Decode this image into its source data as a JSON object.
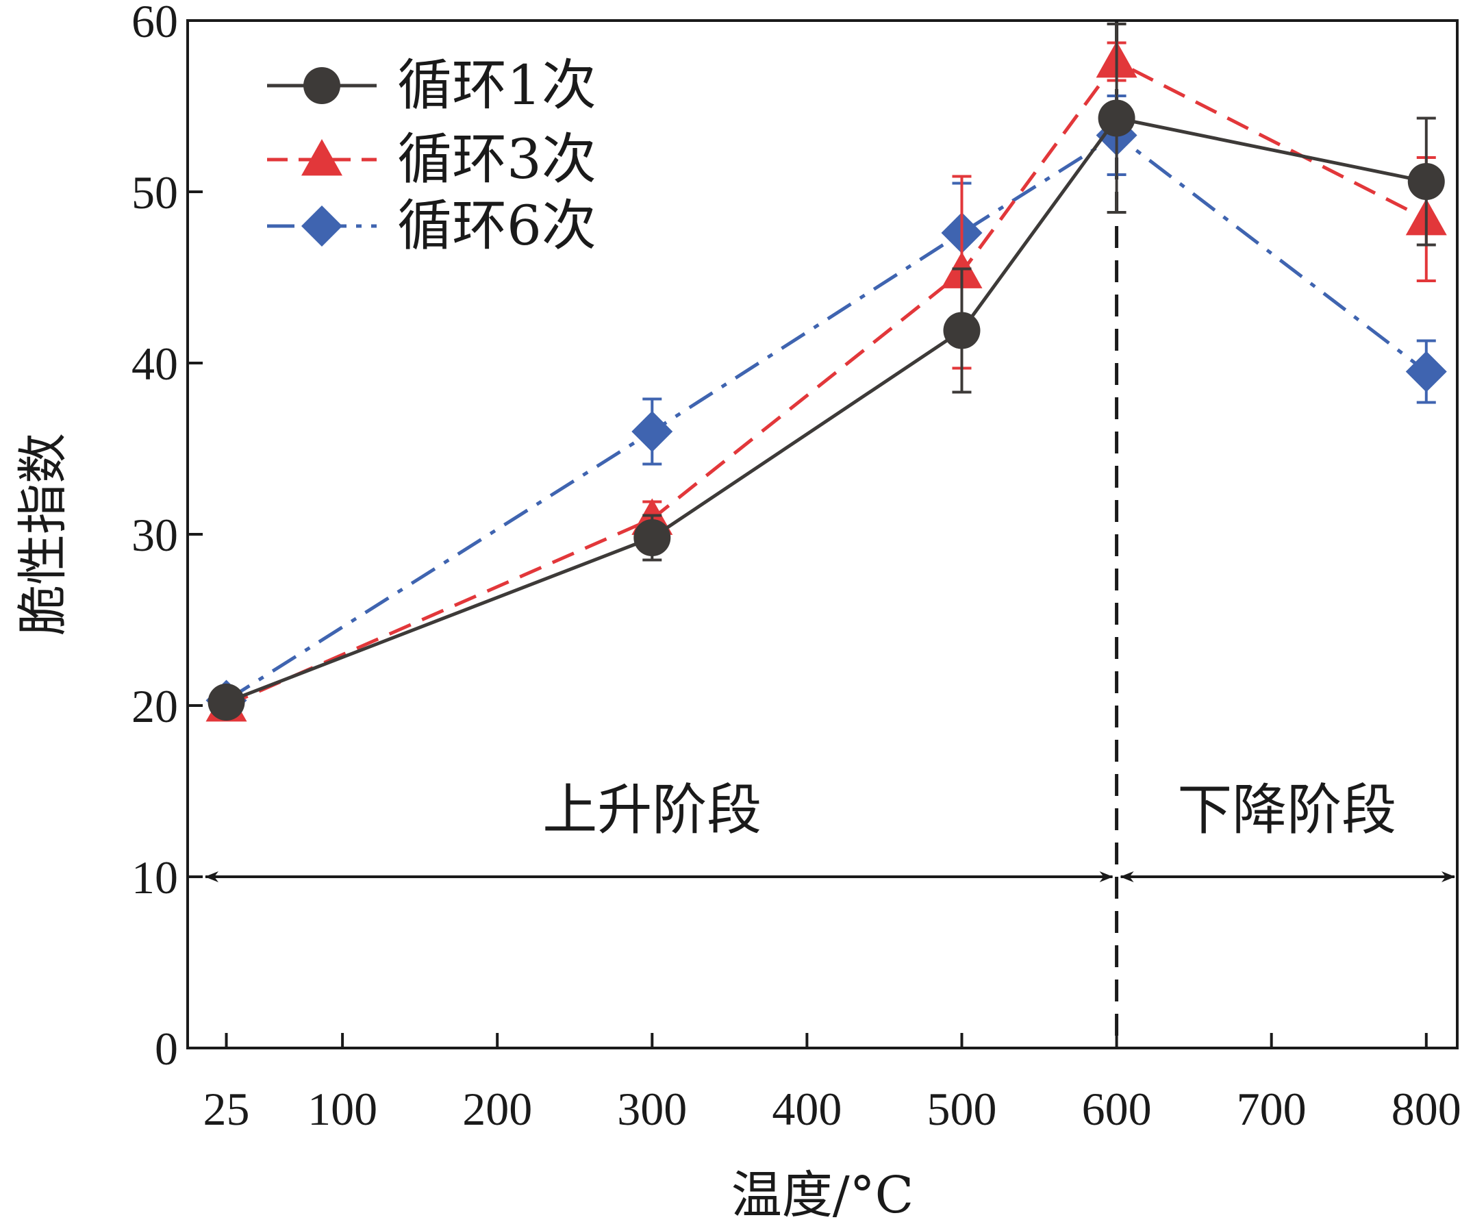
{
  "chart_data": {
    "type": "line",
    "title": "",
    "xlabel": "温度/°C",
    "ylabel": "脆性指数",
    "xlim": [
      0,
      820
    ],
    "ylim": [
      0,
      60
    ],
    "xticks": [
      25,
      100,
      200,
      300,
      400,
      500,
      600,
      700,
      800
    ],
    "xtick_labels": [
      "25",
      "100",
      "200",
      "300",
      "400",
      "500",
      "600",
      "700",
      "800"
    ],
    "yticks": [
      0,
      10,
      20,
      30,
      40,
      50,
      60
    ],
    "ytick_labels": [
      "0",
      "10",
      "20",
      "30",
      "40",
      "50",
      "60"
    ],
    "grid": false,
    "legend_position": "top-left",
    "series": [
      {
        "name": "循环1次",
        "color": "#3d3a38",
        "marker": "circle",
        "line_style": "solid",
        "x": [
          25,
          300,
          500,
          600,
          800
        ],
        "values": [
          20.2,
          29.8,
          41.9,
          54.3,
          50.6
        ],
        "error": [
          0.6,
          1.3,
          3.6,
          5.5,
          3.7
        ]
      },
      {
        "name": "循环3次",
        "color": "#e2373a",
        "marker": "triangle",
        "line_style": "dashed",
        "x": [
          25,
          300,
          500,
          600,
          800
        ],
        "values": [
          20.0,
          30.9,
          45.3,
          57.6,
          48.4
        ],
        "error": [
          0.4,
          1.0,
          5.6,
          1.1,
          3.6
        ]
      },
      {
        "name": "循环6次",
        "color": "#3f64b0",
        "marker": "diamond",
        "line_style": "dashdot",
        "x": [
          25,
          300,
          500,
          600,
          800
        ],
        "values": [
          20.3,
          36.0,
          47.6,
          53.3,
          39.5
        ],
        "error": [
          0.5,
          1.9,
          2.9,
          2.3,
          1.8
        ]
      }
    ],
    "vertical_line": {
      "x": 600,
      "style": "dashed"
    },
    "annotations": [
      {
        "text": "上升阶段",
        "x_from": 25,
        "x_to": 600,
        "y": 10
      },
      {
        "text": "下降阶段",
        "x_from": 600,
        "x_to": 820,
        "y": 10
      }
    ]
  }
}
